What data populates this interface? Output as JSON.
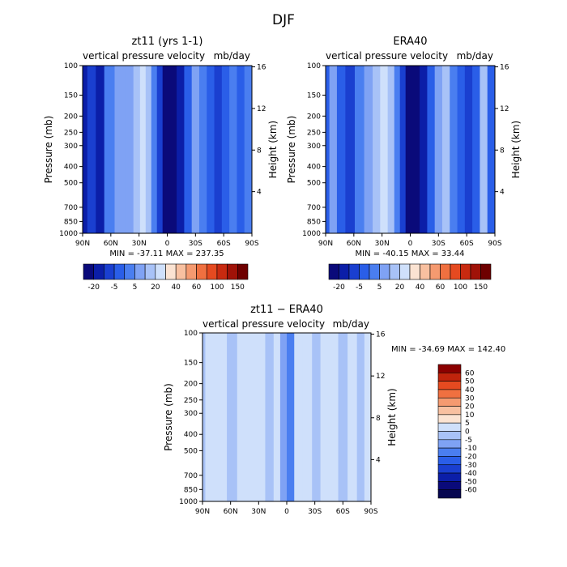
{
  "title": "DJF",
  "chart_data": [
    {
      "type": "heatmap",
      "title": "zt11 (yrs 1-1)",
      "subtitle_left": "vertical pressure velocity",
      "subtitle_right": "mb/day",
      "xlabel": "",
      "ylabel": "Pressure (mb)",
      "y2label": "Height (km)",
      "x_ticks": [
        "90N",
        "60N",
        "30N",
        "0",
        "30S",
        "60S",
        "90S"
      ],
      "y_ticks": [
        100,
        150,
        200,
        250,
        300,
        400,
        500,
        700,
        850,
        1000
      ],
      "y2_ticks": [
        16,
        12,
        8,
        4
      ],
      "stats": "MIN = -37.11   MAX = 237.35",
      "colorbar": {
        "orientation": "horizontal",
        "labels": [
          "-20",
          "-5",
          "5",
          "20",
          "40",
          "60",
          "100",
          "150"
        ],
        "colors": [
          "#0a0a7a",
          "#0b1ea8",
          "#1a3fd0",
          "#2a5ee8",
          "#4a7ef0",
          "#7fa2f4",
          "#a8c2f7",
          "#cfe0fb",
          "#fbe3d2",
          "#f8c0a0",
          "#f59a70",
          "#f07040",
          "#e54a20",
          "#c82a10",
          "#a01208",
          "#6e0000"
        ]
      },
      "bands": [
        {
          "lat": 90,
          "v": 1
        },
        {
          "lat": 80,
          "v": 2
        },
        {
          "lat": 72,
          "v": 1
        },
        {
          "lat": 62,
          "v": 4
        },
        {
          "lat": 50,
          "v": 5
        },
        {
          "lat": 40,
          "v": 5
        },
        {
          "lat": 32,
          "v": 6
        },
        {
          "lat": 26,
          "v": 7
        },
        {
          "lat": 20,
          "v": 6
        },
        {
          "lat": 14,
          "v": 4
        },
        {
          "lat": 8,
          "v": 2
        },
        {
          "lat": 2,
          "v": 0
        },
        {
          "lat": -6,
          "v": 0
        },
        {
          "lat": -14,
          "v": 1
        },
        {
          "lat": -22,
          "v": 3
        },
        {
          "lat": -30,
          "v": 5
        },
        {
          "lat": -38,
          "v": 4
        },
        {
          "lat": -46,
          "v": 3
        },
        {
          "lat": -54,
          "v": 2
        },
        {
          "lat": -62,
          "v": 3
        },
        {
          "lat": -70,
          "v": 4
        },
        {
          "lat": -78,
          "v": 3
        },
        {
          "lat": -86,
          "v": 4
        }
      ]
    },
    {
      "type": "heatmap",
      "title": "ERA40",
      "subtitle_left": "vertical pressure velocity",
      "subtitle_right": "mb/day",
      "xlabel": "",
      "ylabel": "Pressure (mb)",
      "y2label": "Height (km)",
      "x_ticks": [
        "90N",
        "60N",
        "30N",
        "0",
        "30S",
        "60S",
        "90S"
      ],
      "y_ticks": [
        100,
        150,
        200,
        250,
        300,
        400,
        500,
        700,
        850,
        1000
      ],
      "y2_ticks": [
        16,
        12,
        8,
        4
      ],
      "stats": "MIN = -40.15   MAX =  33.44",
      "colorbar": {
        "orientation": "horizontal",
        "labels": [
          "-20",
          "-5",
          "5",
          "20",
          "40",
          "60",
          "100",
          "150"
        ],
        "colors": [
          "#0a0a7a",
          "#0b1ea8",
          "#1a3fd0",
          "#2a5ee8",
          "#4a7ef0",
          "#7fa2f4",
          "#a8c2f7",
          "#cfe0fb",
          "#fbe3d2",
          "#f8c0a0",
          "#f59a70",
          "#f07040",
          "#e54a20",
          "#c82a10",
          "#a01208",
          "#6e0000"
        ]
      },
      "bands": [
        {
          "lat": 90,
          "v": 3
        },
        {
          "lat": 82,
          "v": 5
        },
        {
          "lat": 74,
          "v": 3
        },
        {
          "lat": 64,
          "v": 2
        },
        {
          "lat": 54,
          "v": 4
        },
        {
          "lat": 44,
          "v": 5
        },
        {
          "lat": 36,
          "v": 6
        },
        {
          "lat": 28,
          "v": 7
        },
        {
          "lat": 20,
          "v": 6
        },
        {
          "lat": 14,
          "v": 4
        },
        {
          "lat": 8,
          "v": 2
        },
        {
          "lat": 2,
          "v": 0
        },
        {
          "lat": -6,
          "v": 0
        },
        {
          "lat": -14,
          "v": 1
        },
        {
          "lat": -22,
          "v": 3
        },
        {
          "lat": -30,
          "v": 5
        },
        {
          "lat": -38,
          "v": 6
        },
        {
          "lat": -46,
          "v": 4
        },
        {
          "lat": -54,
          "v": 3
        },
        {
          "lat": -62,
          "v": 2
        },
        {
          "lat": -70,
          "v": 3
        },
        {
          "lat": -78,
          "v": 6
        },
        {
          "lat": -86,
          "v": 3
        }
      ]
    },
    {
      "type": "heatmap",
      "title": "zt11 − ERA40",
      "subtitle_left": "vertical pressure velocity",
      "subtitle_right": "mb/day",
      "xlabel": "",
      "ylabel": "Pressure (mb)",
      "y2label": "Height (km)",
      "x_ticks": [
        "90N",
        "60N",
        "30N",
        "0",
        "30S",
        "60S",
        "90S"
      ],
      "y_ticks": [
        100,
        150,
        200,
        250,
        300,
        400,
        500,
        700,
        850,
        1000
      ],
      "y2_ticks": [
        16,
        12,
        8,
        4
      ],
      "stats": "MIN = -34.69   MAX = 142.40",
      "colorbar": {
        "orientation": "vertical",
        "labels": [
          "60",
          "50",
          "40",
          "30",
          "20",
          "10",
          "5",
          "0",
          "-5",
          "-10",
          "-20",
          "-30",
          "-40",
          "-50",
          "-60"
        ],
        "colors": [
          "#8b0000",
          "#c0240c",
          "#e54a20",
          "#f07040",
          "#f59a70",
          "#f8c0a0",
          "#fbe3d2",
          "#cfe0fb",
          "#a8c2f7",
          "#7fa2f4",
          "#4a7ef0",
          "#2a5ee8",
          "#1a3fd0",
          "#0b1ea8",
          "#0a0a7a",
          "#060650"
        ]
      },
      "bands": [
        {
          "lat": 90,
          "v": 8
        },
        {
          "lat": 84,
          "v": 7
        },
        {
          "lat": 70,
          "v": 7
        },
        {
          "lat": 58,
          "v": 8
        },
        {
          "lat": 48,
          "v": 7
        },
        {
          "lat": 38,
          "v": 7
        },
        {
          "lat": 28,
          "v": 7
        },
        {
          "lat": 18,
          "v": 8
        },
        {
          "lat": 10,
          "v": 7
        },
        {
          "lat": 4,
          "v": 9
        },
        {
          "lat": -4,
          "v": 10
        },
        {
          "lat": -12,
          "v": 7
        },
        {
          "lat": -22,
          "v": 7
        },
        {
          "lat": -32,
          "v": 8
        },
        {
          "lat": -40,
          "v": 7
        },
        {
          "lat": -50,
          "v": 7
        },
        {
          "lat": -60,
          "v": 8
        },
        {
          "lat": -70,
          "v": 7
        },
        {
          "lat": -80,
          "v": 8
        },
        {
          "lat": -86,
          "v": 7
        }
      ]
    }
  ]
}
